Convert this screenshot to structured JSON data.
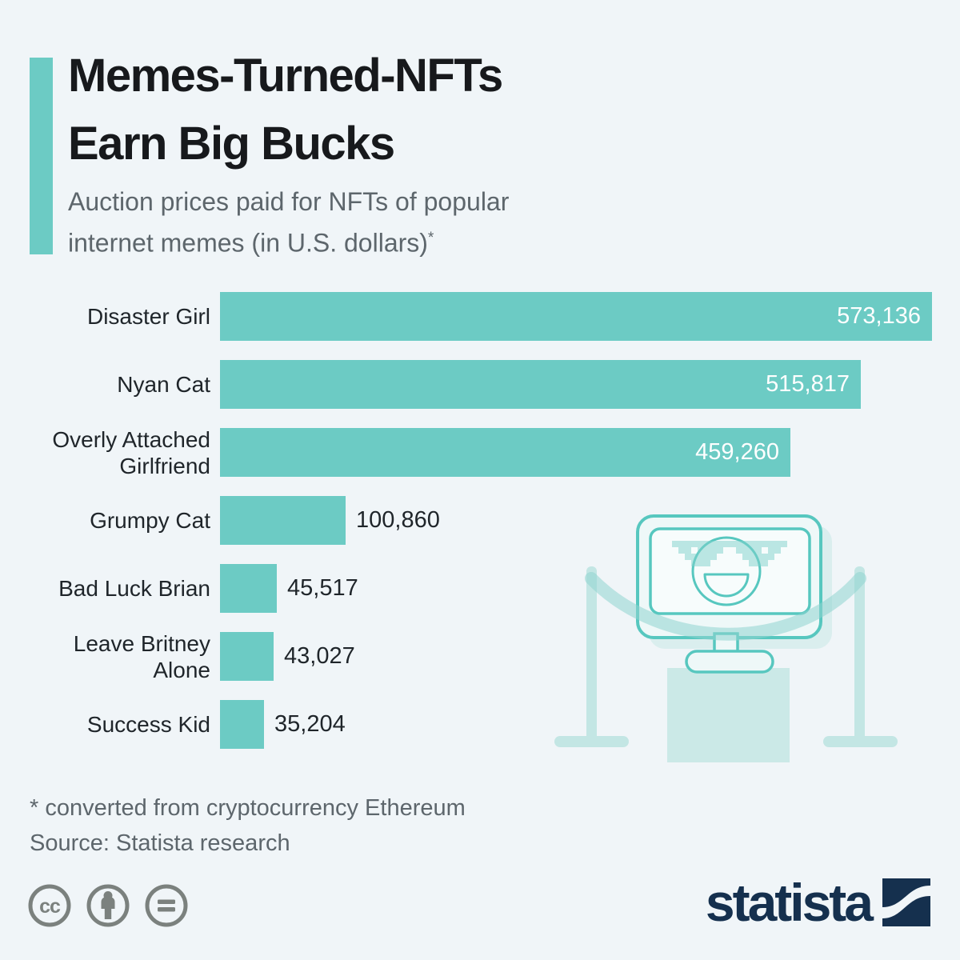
{
  "header": {
    "title_line1": "Memes-Turned-NFTs",
    "title_line2": "Earn Big Bucks",
    "subtitle_line1": "Auction prices paid for NFTs of popular",
    "subtitle_line2": "internet memes (in U.S. dollars)",
    "footnote_marker": "*"
  },
  "chart_data": {
    "type": "bar",
    "orientation": "horizontal",
    "title": "Memes-Turned-NFTs Earn Big Bucks",
    "subtitle": "Auction prices paid for NFTs of popular internet memes (in U.S. dollars)*",
    "unit": "U.S. dollars",
    "categories": [
      "Disaster Girl",
      "Nyan Cat",
      "Overly Attached Girlfriend",
      "Grumpy Cat",
      "Bad Luck Brian",
      "Leave Britney Alone",
      "Success Kid"
    ],
    "label_lines": [
      [
        "Disaster Girl"
      ],
      [
        "Nyan Cat"
      ],
      [
        "Overly Attached",
        "Girlfriend"
      ],
      [
        "Grumpy Cat"
      ],
      [
        "Bad Luck Brian"
      ],
      [
        "Leave Britney",
        "Alone"
      ],
      [
        "Success Kid"
      ]
    ],
    "values": [
      573136,
      515817,
      459260,
      100860,
      45517,
      43027,
      35204
    ],
    "value_labels": [
      "573,136",
      "515,817",
      "459,260",
      "100,860",
      "45,517",
      "43,027",
      "35,204"
    ],
    "value_label_position": [
      "inside",
      "inside",
      "inside",
      "outside",
      "outside",
      "outside",
      "outside"
    ],
    "xlim": [
      0,
      573136
    ],
    "bar_color": "#6ccbc4",
    "grid": false,
    "legend": false
  },
  "footer": {
    "footnote": "* converted from cryptocurrency Ethereum",
    "source": "Source: Statista research"
  },
  "branding": {
    "logo_text": "statista"
  },
  "license": {
    "icons": [
      "creative-commons",
      "attribution",
      "no-derivatives"
    ]
  },
  "colors": {
    "background": "#f0f5f8",
    "bar": "#6ccbc4",
    "accent_bar": "#6ccbc4",
    "title": "#17191c",
    "gray_text": "#5d666c",
    "label_text": "#1f252a",
    "value_inside": "#ffffff",
    "logo_navy": "#15304e",
    "illustration_outline": "#57c7bf",
    "illustration_light_fill": "#c9e8e6",
    "license_gray": "#7b817e"
  }
}
